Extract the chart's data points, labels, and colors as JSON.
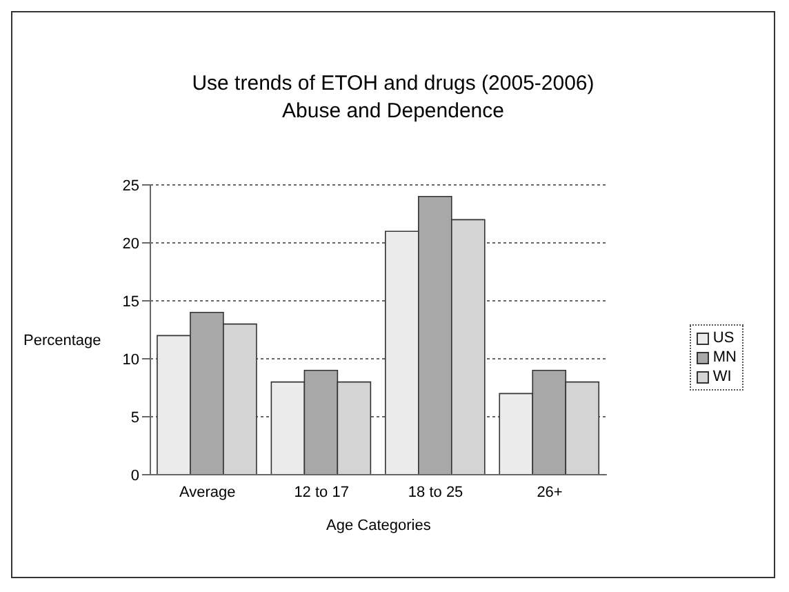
{
  "chart_data": {
    "type": "bar",
    "title": "Use trends of ETOH and drugs (2005-2006)",
    "subtitle": "Abuse and Dependence",
    "xlabel": "Age Categories",
    "ylabel": "Percentage",
    "categories": [
      "Average",
      "12 to 17",
      "18 to 25",
      "26+"
    ],
    "series": [
      {
        "name": "US",
        "color": "#ececec",
        "values": [
          12,
          8,
          21,
          7
        ]
      },
      {
        "name": "MN",
        "color": "#a8a8a8",
        "values": [
          14,
          9,
          24,
          9
        ]
      },
      {
        "name": "WI",
        "color": "#d4d4d4",
        "values": [
          13,
          8,
          22,
          8
        ]
      }
    ],
    "ylim": [
      0,
      25
    ],
    "yticks": [
      0,
      5,
      10,
      15,
      20,
      25
    ],
    "grid": "y",
    "legend": "right"
  }
}
